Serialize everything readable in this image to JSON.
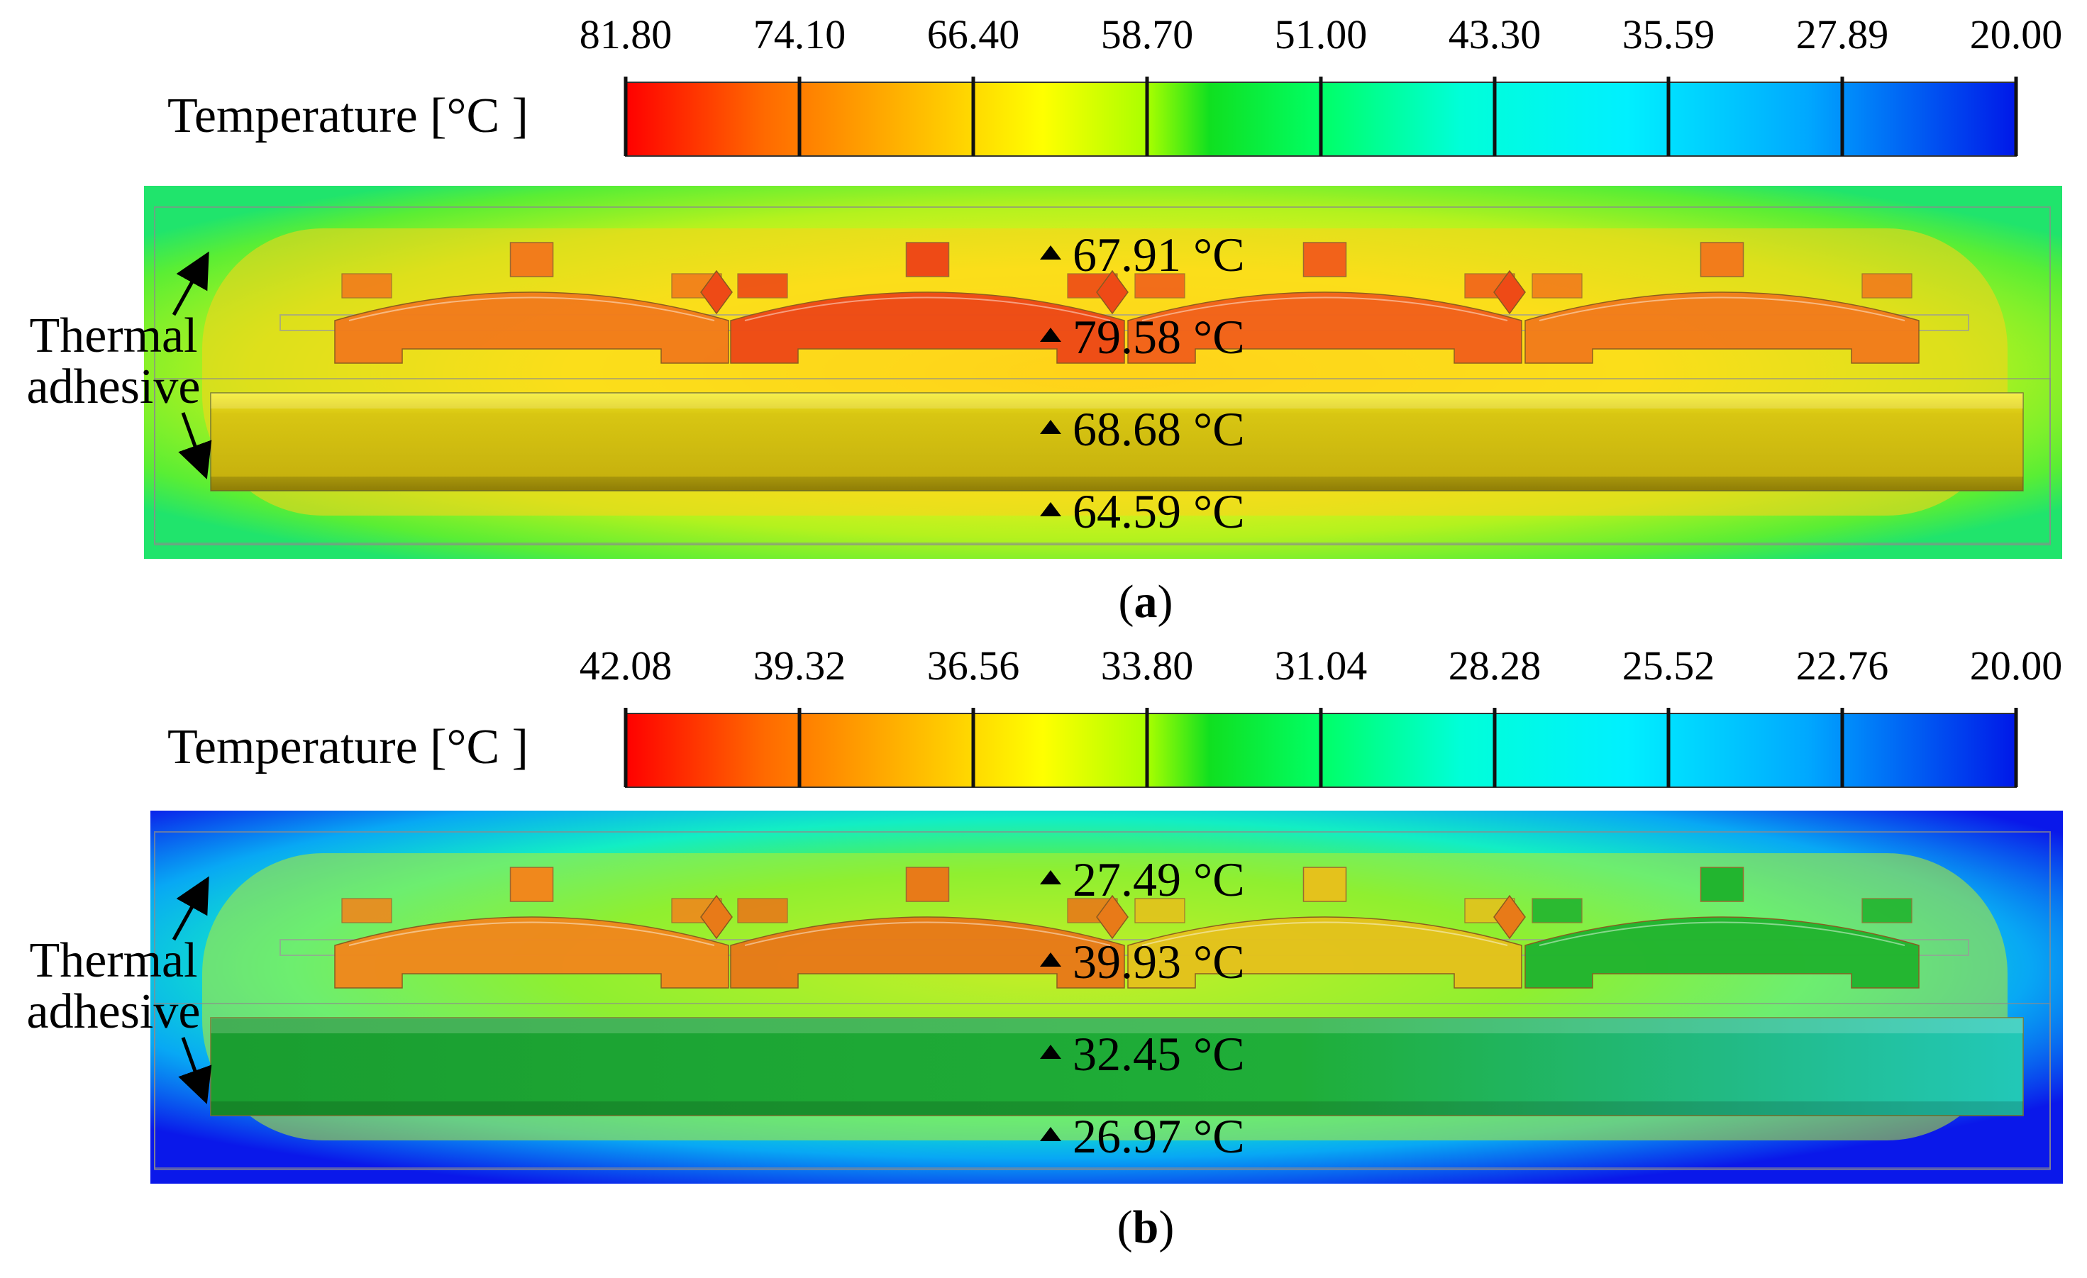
{
  "panels": [
    {
      "id": "a",
      "caption": "a",
      "legend_title": "Temperature [°C ]",
      "scale_labels": [
        "81.80",
        "74.10",
        "66.40",
        "58.70",
        "51.00",
        "43.30",
        "35.59",
        "27.89",
        "20.00"
      ],
      "probes": [
        "67.91 °C",
        "79.58 °C",
        "68.68 °C",
        "64.59 °C"
      ],
      "annotation_line1": "Thermal",
      "annotation_line2": "adhesive",
      "colors": {
        "field_edge": "#22e36a",
        "field_mid": "#9ef023",
        "field_inner": "#f3ee1e",
        "field_core": "#ffd21a",
        "cells": [
          "#f27c1b",
          "#ee4a16",
          "#f2621a",
          "#f27c1b"
        ],
        "bar": "#c9b50e"
      }
    },
    {
      "id": "b",
      "caption": "b",
      "legend_title": "Temperature [°C ]",
      "scale_labels": [
        "42.08",
        "39.32",
        "36.56",
        "33.80",
        "31.04",
        "28.28",
        "25.52",
        "22.76",
        "20.00"
      ],
      "probes": [
        "27.49 °C",
        "39.93 °C",
        "32.45 °C",
        "26.97 °C"
      ],
      "annotation_line1": "Thermal",
      "annotation_line2": "adhesive",
      "colors": {
        "field_edge": "#0c1eea",
        "field_mid": "#0ad8f0",
        "field_inner": "#2fe86a",
        "field_core": "#b8ef2a",
        "cells": [
          "#f0881c",
          "#e87a18",
          "#e4c21c",
          "#22b52f"
        ],
        "bar": "#1aa836"
      }
    }
  ],
  "colorbar_stops": [
    "#ff0000",
    "#ff8000",
    "#ffd000",
    "#ffff00",
    "#b0ff00",
    "#00ff00",
    "#00ff90",
    "#00ffff",
    "#00d0ff",
    "#0080ff",
    "#0000ee"
  ]
}
